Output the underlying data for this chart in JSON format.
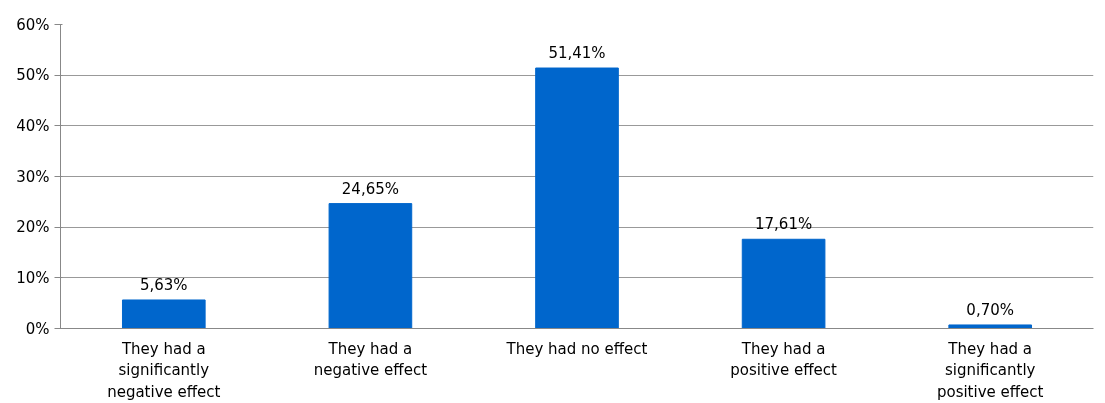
{
  "chart_data": {
    "type": "bar",
    "categories": [
      "They had a\nsignificantly\nnegative effect",
      "They had a\nnegative effect",
      "They had no effect",
      "They had a\npositive effect",
      "They had a\nsignificantly\npositive effect"
    ],
    "values": [
      5.63,
      24.65,
      51.41,
      17.61,
      0.7
    ],
    "value_labels": [
      "5,63%",
      "24,65%",
      "51,41%",
      "17,61%",
      "0,70%"
    ],
    "color": "#0066cc",
    "ylim": [
      0,
      60
    ],
    "yticks": [
      {
        "value": 0,
        "label": "0%"
      },
      {
        "value": 10,
        "label": "10%"
      },
      {
        "value": 20,
        "label": "20%"
      },
      {
        "value": 30,
        "label": "30%"
      },
      {
        "value": 40,
        "label": "40%"
      },
      {
        "value": 50,
        "label": "50%"
      },
      {
        "value": 60,
        "label": "60%"
      }
    ],
    "grid": "y"
  }
}
